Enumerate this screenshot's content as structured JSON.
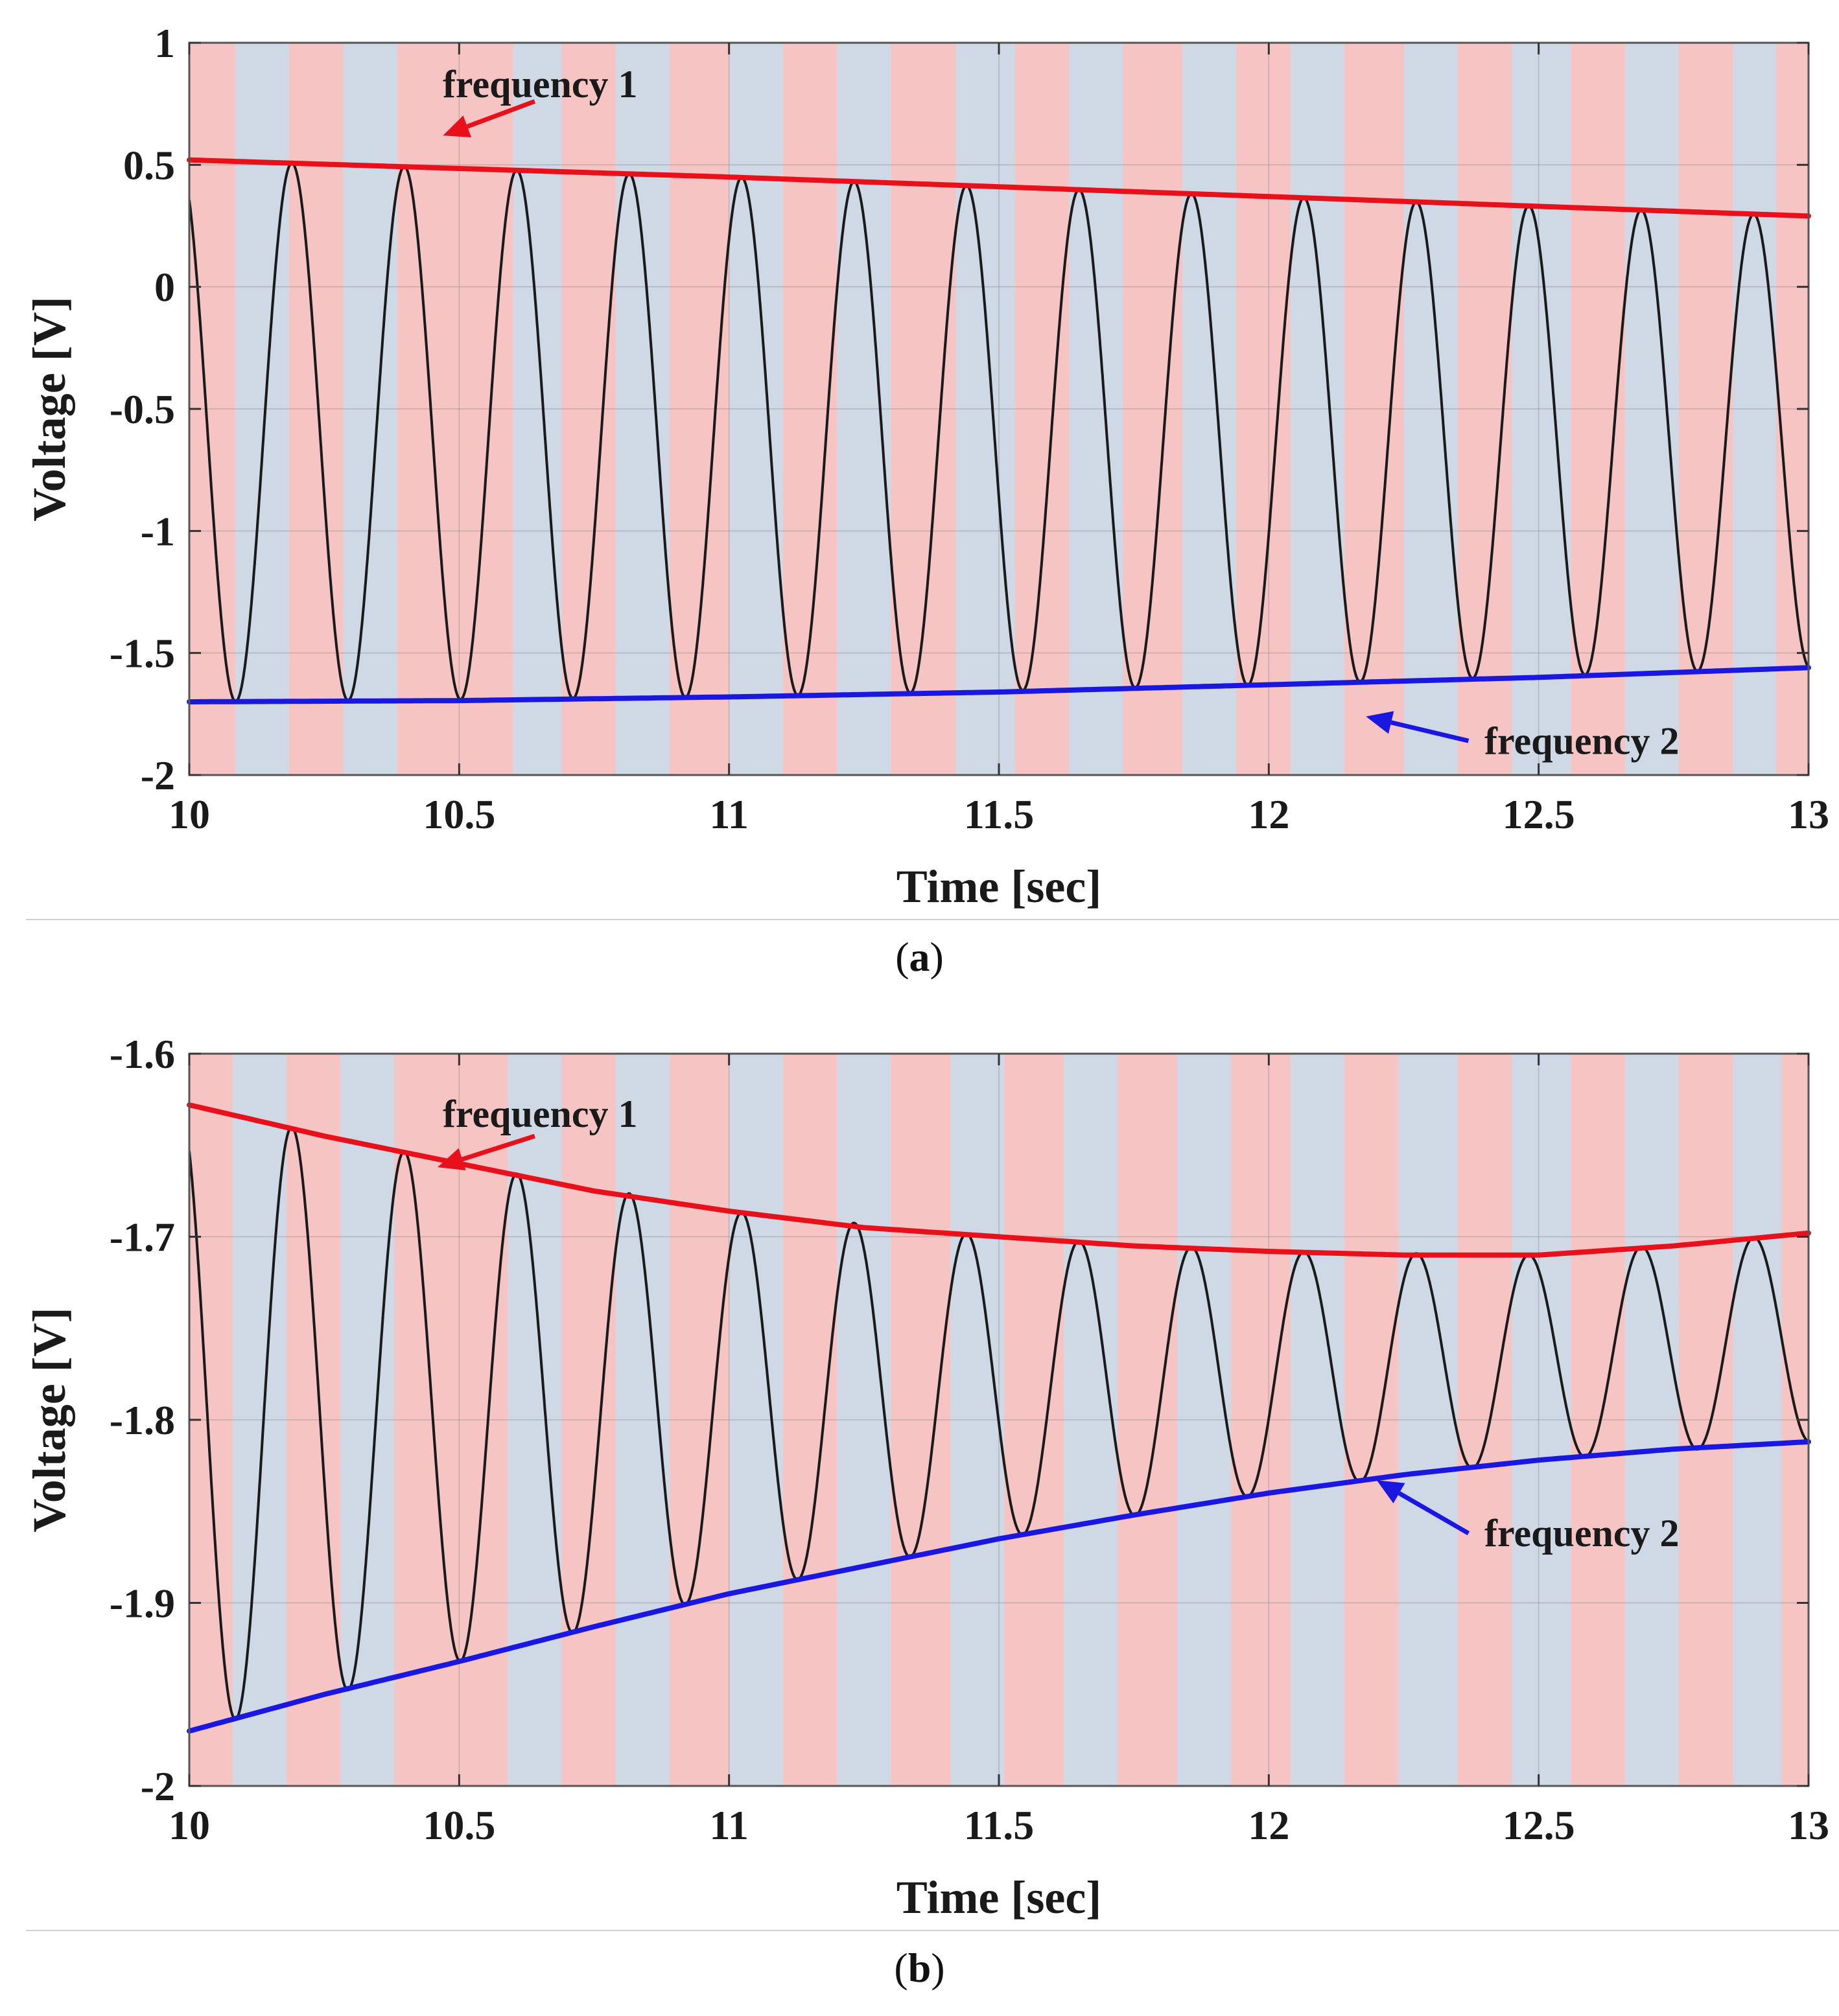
{
  "chart_data": [
    {
      "type": "line",
      "panel_label": "a",
      "xlabel": "Time [sec]",
      "ylabel": "Voltage [V]",
      "xlim": [
        10,
        13
      ],
      "ylim": [
        -2,
        1
      ],
      "xticks": [
        10,
        10.5,
        11,
        11.5,
        12,
        12.5,
        13
      ],
      "xtick_labels": [
        "10",
        "10.5",
        "11",
        "11.5",
        "12",
        "12.5",
        "13"
      ],
      "yticks": [
        1,
        0.5,
        0,
        -0.5,
        -1,
        -1.5,
        -2
      ],
      "ytick_labels": [
        "1",
        "0.5",
        "0",
        "-0.5",
        "-1",
        "-1.5",
        "-2"
      ],
      "grid": true,
      "background_bands": {
        "colors": [
          "#f7c4c4",
          "#cfd9e6"
        ],
        "boundaries": [
          10,
          10.085,
          10.185,
          10.285,
          10.385,
          10.6,
          10.69,
          10.79,
          10.89,
          11.0,
          11.1,
          11.2,
          11.3,
          11.42,
          11.53,
          11.63,
          11.73,
          11.84,
          11.94,
          12.04,
          12.14,
          12.25,
          12.35,
          12.45,
          12.56,
          12.66,
          12.76,
          12.86,
          12.94,
          13.0
        ]
      },
      "oscillation": {
        "name": "signal",
        "color": "#1a1a1a",
        "frequency_hz": 4.8,
        "phase": 0.55,
        "upper_envelope": {
          "x": [
            10,
            11,
            12,
            13
          ],
          "y": [
            0.52,
            0.45,
            0.37,
            0.29
          ]
        },
        "lower_envelope": {
          "x": [
            10,
            11,
            12,
            13
          ],
          "y": [
            -1.7,
            -1.68,
            -1.63,
            -1.56
          ]
        }
      },
      "series": [
        {
          "name": "frequency 1",
          "color": "#e8101a",
          "x": [
            10,
            10.5,
            11,
            11.5,
            12,
            12.5,
            13
          ],
          "y": [
            0.52,
            0.485,
            0.45,
            0.41,
            0.37,
            0.33,
            0.29
          ]
        },
        {
          "name": "frequency 2",
          "color": "#1a18e0",
          "x": [
            10,
            10.5,
            11,
            11.5,
            12,
            12.5,
            13
          ],
          "y": [
            -1.7,
            -1.695,
            -1.68,
            -1.66,
            -1.63,
            -1.6,
            -1.56
          ]
        }
      ],
      "annotations": [
        {
          "text": "frequency 1",
          "color": "#e8101a",
          "text_x": 10.65,
          "text_y": 0.83,
          "tail_x": 10.64,
          "tail_y": 0.76,
          "head_x": 10.47,
          "head_y": 0.62
        },
        {
          "text": "frequency 2",
          "color": "#1a18e0",
          "text_x": 12.58,
          "text_y": -1.86,
          "tail_x": 12.37,
          "tail_y": -1.86,
          "head_x": 12.18,
          "head_y": -1.76
        }
      ],
      "caption": "(a)"
    },
    {
      "type": "line",
      "panel_label": "b",
      "xlabel": "Time [sec]",
      "ylabel": "Voltage [V]",
      "xlim": [
        10,
        13
      ],
      "ylim": [
        -2,
        -1.6
      ],
      "xticks": [
        10,
        10.5,
        11,
        11.5,
        12,
        12.5,
        13
      ],
      "xtick_labels": [
        "10",
        "10.5",
        "11",
        "11.5",
        "12",
        "12.5",
        "13"
      ],
      "yticks": [
        -1.6,
        -1.7,
        -1.8,
        -1.9,
        -2
      ],
      "ytick_labels": [
        "-1.6",
        "-1.7",
        "-1.8",
        "-1.9",
        "-2"
      ],
      "grid": true,
      "background_bands": {
        "colors": [
          "#f7c4c4",
          "#cfd9e6"
        ],
        "boundaries": [
          10,
          10.08,
          10.18,
          10.28,
          10.38,
          10.59,
          10.69,
          10.79,
          10.89,
          11.0,
          11.1,
          11.2,
          11.3,
          11.41,
          11.51,
          11.62,
          11.72,
          11.83,
          11.93,
          12.04,
          12.14,
          12.24,
          12.35,
          12.45,
          12.56,
          12.66,
          12.76,
          12.86,
          12.95,
          13.0
        ]
      },
      "oscillation": {
        "name": "signal",
        "color": "#1a1a1a",
        "frequency_hz": 4.8,
        "phase": 0.55,
        "upper_envelope": {
          "x": [
            10,
            10.5,
            11,
            11.5,
            12,
            12.5,
            13
          ],
          "y": [
            -1.628,
            -1.66,
            -1.686,
            -1.7,
            -1.708,
            -1.71,
            -1.698
          ]
        },
        "lower_envelope": {
          "x": [
            10,
            10.5,
            11,
            11.5,
            12,
            12.5,
            13
          ],
          "y": [
            -1.97,
            -1.932,
            -1.895,
            -1.865,
            -1.84,
            -1.822,
            -1.812
          ]
        }
      },
      "series": [
        {
          "name": "frequency 1",
          "color": "#e8101a",
          "x": [
            10,
            10.25,
            10.5,
            10.75,
            11,
            11.25,
            11.5,
            11.75,
            12,
            12.25,
            12.5,
            12.75,
            13
          ],
          "y": [
            -1.628,
            -1.645,
            -1.66,
            -1.675,
            -1.686,
            -1.695,
            -1.7,
            -1.705,
            -1.708,
            -1.71,
            -1.71,
            -1.705,
            -1.698
          ]
        },
        {
          "name": "frequency 2",
          "color": "#1a18e0",
          "x": [
            10,
            10.25,
            10.5,
            10.75,
            11,
            11.25,
            11.5,
            11.75,
            12,
            12.25,
            12.5,
            12.75,
            13
          ],
          "y": [
            -1.97,
            -1.95,
            -1.932,
            -1.913,
            -1.895,
            -1.88,
            -1.865,
            -1.852,
            -1.84,
            -1.83,
            -1.822,
            -1.816,
            -1.812
          ]
        }
      ],
      "annotations": [
        {
          "text": "frequency 1",
          "color": "#e8101a",
          "text_x": 10.65,
          "text_y": -1.633,
          "tail_x": 10.64,
          "tail_y": -1.645,
          "head_x": 10.46,
          "head_y": -1.662
        },
        {
          "text": "frequency 2",
          "color": "#1a18e0",
          "text_x": 12.58,
          "text_y": -1.862,
          "tail_x": 12.37,
          "tail_y": -1.862,
          "head_x": 12.2,
          "head_y": -1.833
        }
      ],
      "caption": "(b)"
    }
  ],
  "captions": {
    "a_letter": "a",
    "b_letter": "b"
  }
}
